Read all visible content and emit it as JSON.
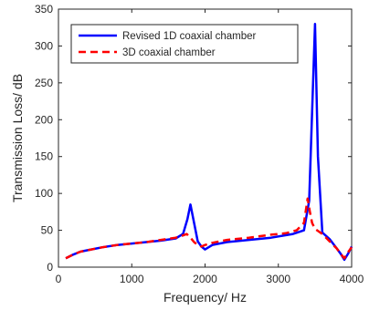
{
  "chart_data": {
    "type": "line",
    "xlabel": "Frequency/ Hz",
    "ylabel": "Transmission Loss/ dB",
    "xlim": [
      0,
      4000
    ],
    "ylim": [
      0,
      350
    ],
    "xticks": [
      0,
      1000,
      2000,
      3000,
      4000
    ],
    "yticks": [
      0,
      50,
      100,
      150,
      200,
      250,
      300,
      350
    ],
    "xtick_labels": [
      "0",
      "1000",
      "2000",
      "3000",
      "4000"
    ],
    "ytick_labels": [
      "0",
      "50",
      "100",
      "150",
      "200",
      "250",
      "300",
      "350"
    ],
    "grid": false,
    "legend_position": "top-left",
    "series": [
      {
        "name": "Revised 1D coaxial chamber",
        "color": "#0000ff",
        "style": "solid",
        "x": [
          100,
          200,
          300,
          400,
          600,
          800,
          1000,
          1200,
          1400,
          1600,
          1700,
          1760,
          1800,
          1850,
          1900,
          1950,
          2000,
          2100,
          2300,
          2600,
          2900,
          3200,
          3350,
          3420,
          3460,
          3500,
          3540,
          3600,
          3700,
          3800,
          3850,
          3900,
          3950,
          4000
        ],
        "y": [
          12,
          17,
          21,
          23,
          27,
          30,
          32,
          34,
          36,
          39,
          45,
          65,
          85,
          60,
          35,
          28,
          24,
          30,
          34,
          37,
          40,
          45,
          50,
          90,
          210,
          330,
          150,
          47,
          38,
          25,
          18,
          10,
          18,
          28
        ]
      },
      {
        "name": "3D coaxial chamber",
        "color": "#ff0000",
        "style": "dashed",
        "x": [
          100,
          200,
          300,
          400,
          600,
          800,
          1000,
          1200,
          1400,
          1600,
          1700,
          1750,
          1800,
          1850,
          1900,
          1950,
          2000,
          2100,
          2300,
          2600,
          2900,
          3100,
          3250,
          3350,
          3400,
          3430,
          3460,
          3500,
          3600,
          3700,
          3800,
          3850,
          3900,
          3950,
          4000
        ],
        "y": [
          12,
          17,
          21,
          23,
          27,
          30,
          32,
          34,
          37,
          40,
          43,
          45,
          40,
          34,
          30,
          28,
          30,
          33,
          37,
          40,
          44,
          46,
          50,
          60,
          93,
          75,
          60,
          52,
          45,
          35,
          25,
          18,
          12,
          20,
          27
        ]
      }
    ]
  }
}
